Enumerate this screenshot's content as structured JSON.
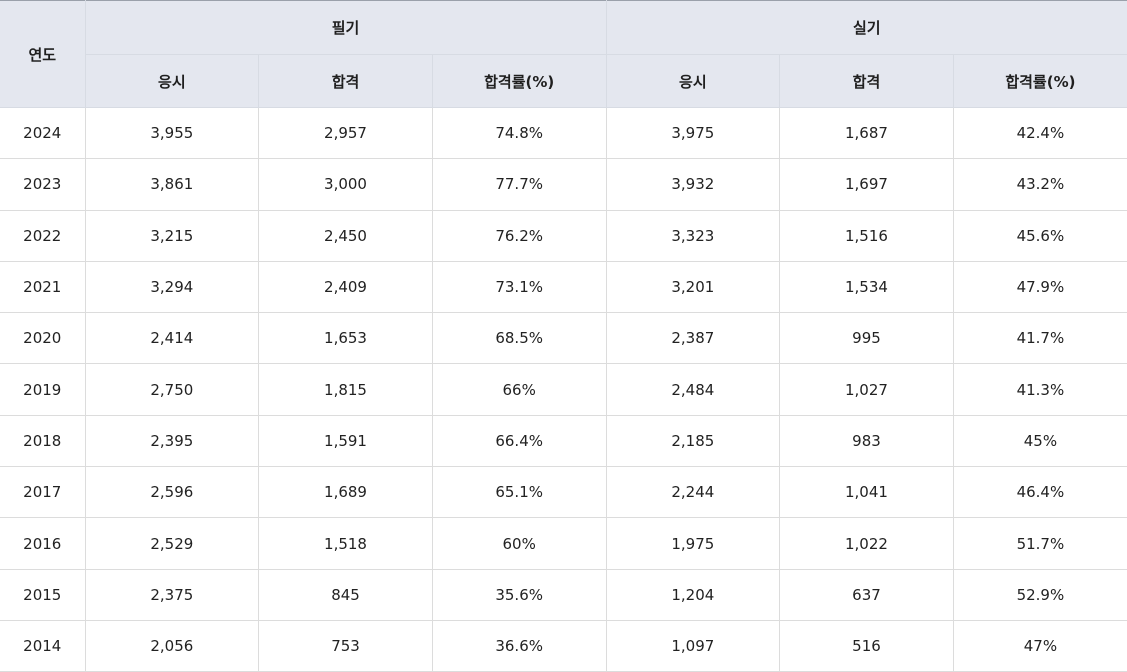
{
  "header": {
    "year_label": "연도",
    "written_label": "필기",
    "practical_label": "실기",
    "written_cols": [
      "응시",
      "합격",
      "합격률(%)"
    ],
    "practical_cols": [
      "응시",
      "합격",
      "합격률(%)"
    ]
  },
  "rows": [
    {
      "year": "2024",
      "w_applied": "3,955",
      "w_passed": "2,957",
      "w_rate": "74.8%",
      "p_applied": "3,975",
      "p_passed": "1,687",
      "p_rate": "42.4%"
    },
    {
      "year": "2023",
      "w_applied": "3,861",
      "w_passed": "3,000",
      "w_rate": "77.7%",
      "p_applied": "3,932",
      "p_passed": "1,697",
      "p_rate": "43.2%"
    },
    {
      "year": "2022",
      "w_applied": "3,215",
      "w_passed": "2,450",
      "w_rate": "76.2%",
      "p_applied": "3,323",
      "p_passed": "1,516",
      "p_rate": "45.6%"
    },
    {
      "year": "2021",
      "w_applied": "3,294",
      "w_passed": "2,409",
      "w_rate": "73.1%",
      "p_applied": "3,201",
      "p_passed": "1,534",
      "p_rate": "47.9%"
    },
    {
      "year": "2020",
      "w_applied": "2,414",
      "w_passed": "1,653",
      "w_rate": "68.5%",
      "p_applied": "2,387",
      "p_passed": "995",
      "p_rate": "41.7%"
    },
    {
      "year": "2019",
      "w_applied": "2,750",
      "w_passed": "1,815",
      "w_rate": "66%",
      "p_applied": "2,484",
      "p_passed": "1,027",
      "p_rate": "41.3%"
    },
    {
      "year": "2018",
      "w_applied": "2,395",
      "w_passed": "1,591",
      "w_rate": "66.4%",
      "p_applied": "2,185",
      "p_passed": "983",
      "p_rate": "45%"
    },
    {
      "year": "2017",
      "w_applied": "2,596",
      "w_passed": "1,689",
      "w_rate": "65.1%",
      "p_applied": "2,244",
      "p_passed": "1,041",
      "p_rate": "46.4%"
    },
    {
      "year": "2016",
      "w_applied": "2,529",
      "w_passed": "1,518",
      "w_rate": "60%",
      "p_applied": "1,975",
      "p_passed": "1,022",
      "p_rate": "51.7%"
    },
    {
      "year": "2015",
      "w_applied": "2,375",
      "w_passed": "845",
      "w_rate": "35.6%",
      "p_applied": "1,204",
      "p_passed": "637",
      "p_rate": "52.9%"
    },
    {
      "year": "2014",
      "w_applied": "2,056",
      "w_passed": "753",
      "w_rate": "36.6%",
      "p_applied": "1,097",
      "p_passed": "516",
      "p_rate": "47%"
    }
  ]
}
